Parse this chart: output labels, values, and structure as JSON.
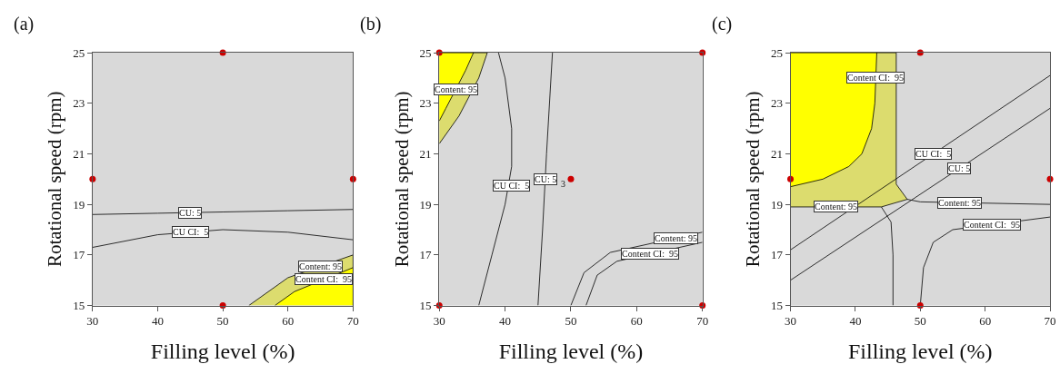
{
  "chart_data": [
    {
      "type": "line",
      "title": "(a)",
      "xlabel": "Filling level (%)",
      "ylabel": "Rotational speed (rpm)",
      "xlim": [
        30,
        70
      ],
      "ylim": [
        15,
        25
      ],
      "xticks": [
        30,
        40,
        50,
        60,
        70
      ],
      "yticks": [
        15,
        17,
        19,
        21,
        23,
        25
      ],
      "grid": false,
      "series": [
        {
          "type": "area",
          "color": "#dcdc6e",
          "x": [
            54,
            60,
            70,
            70
          ],
          "values": [
            15,
            16.1,
            17.0,
            15
          ]
        },
        {
          "type": "area",
          "color": "#ffff00",
          "x": [
            58,
            61,
            70,
            70
          ],
          "values": [
            15,
            15.55,
            16.5,
            15
          ]
        },
        {
          "color": "#000000",
          "x": [
            30,
            40,
            50,
            60,
            70
          ],
          "values": [
            18.6,
            18.65,
            18.7,
            18.75,
            18.8
          ]
        },
        {
          "color": "#000000",
          "x": [
            30,
            40,
            50,
            60,
            70
          ],
          "values": [
            17.3,
            17.8,
            18.0,
            17.9,
            17.6
          ]
        },
        {
          "type": "scatter",
          "marker": "circle",
          "color": "#cc0000",
          "x": [
            30,
            50,
            70,
            50
          ],
          "values": [
            20,
            25,
            20,
            15
          ]
        }
      ],
      "annotations": [
        {
          "text": "CU: 5",
          "x": 45,
          "y": 18.68
        },
        {
          "text": "CU CI:  5",
          "x": 45,
          "y": 17.9
        },
        {
          "text": "Content: 95",
          "x": 65,
          "y": 16.55
        },
        {
          "text": "Content CI:  95",
          "x": 65.5,
          "y": 16.03
        }
      ]
    },
    {
      "type": "line",
      "title": "(b)",
      "xlabel": "Filling level (%)",
      "ylabel": "Rotational speed (rpm)",
      "xlim": [
        30,
        70
      ],
      "ylim": [
        15,
        25
      ],
      "xticks": [
        30,
        40,
        50,
        60,
        70
      ],
      "yticks": [
        15,
        17,
        19,
        21,
        23,
        25
      ],
      "grid": false,
      "series": [
        {
          "type": "area",
          "color": "#dcdc6e",
          "x": [
            30,
            33,
            36,
            37.3,
            30
          ],
          "values": [
            21.4,
            22.5,
            24,
            25,
            25
          ]
        },
        {
          "type": "area",
          "color": "#ffff00",
          "x": [
            30,
            31,
            34,
            35.2,
            30
          ],
          "values": [
            22.3,
            22.8,
            24.3,
            25,
            25
          ]
        },
        {
          "color": "#000000",
          "x": [
            36,
            38,
            40,
            41,
            41,
            40,
            39
          ],
          "values": [
            15,
            17,
            19,
            20.5,
            22,
            24,
            25
          ]
        },
        {
          "color": "#000000",
          "x": [
            45,
            45.7,
            46.3,
            47.2
          ],
          "values": [
            15,
            18,
            21,
            25
          ]
        },
        {
          "color": "#000000",
          "x": [
            50,
            52,
            56,
            70
          ],
          "values": [
            15,
            16.3,
            17.1,
            17.9
          ]
        },
        {
          "color": "#000000",
          "x": [
            52.3,
            54,
            57,
            70
          ],
          "values": [
            15,
            16.2,
            16.75,
            17.5
          ]
        },
        {
          "type": "scatter",
          "marker": "circle",
          "color": "#cc0000",
          "x": [
            30,
            70,
            50,
            30,
            70
          ],
          "values": [
            25,
            25,
            20,
            15,
            15
          ]
        }
      ],
      "annotations": [
        {
          "text": "Content: 95",
          "x": 32.5,
          "y": 23.55
        },
        {
          "text": "CU: 5",
          "x": 46.1,
          "y": 20
        },
        {
          "text": "3",
          "x": 50,
          "y": 20
        },
        {
          "text": "CU CI:  5",
          "x": 41,
          "y": 19.75
        },
        {
          "text": "Content: 95",
          "x": 66,
          "y": 17.67
        },
        {
          "text": "Content CI:  95",
          "x": 62,
          "y": 17.04
        }
      ]
    },
    {
      "type": "line",
      "title": "(c)",
      "xlabel": "Filling level (%)",
      "ylabel": "Rotational speed (rpm)",
      "xlim": [
        30,
        70
      ],
      "ylim": [
        15,
        25
      ],
      "xticks": [
        30,
        40,
        50,
        60,
        70
      ],
      "yticks": [
        15,
        17,
        19,
        21,
        23,
        25
      ],
      "grid": false,
      "series": [
        {
          "type": "area",
          "color": "#dcdc6e",
          "x": [
            30,
            44,
            48,
            46.3,
            46.3,
            30
          ],
          "values": [
            18.9,
            18.9,
            19.2,
            19.8,
            25,
            25
          ]
        },
        {
          "type": "area",
          "color": "#ffff00",
          "x": [
            30,
            35,
            39,
            41,
            42.5,
            43,
            43.3,
            30
          ],
          "values": [
            19.7,
            20.0,
            20.5,
            21.0,
            22,
            23,
            25,
            25
          ]
        },
        {
          "color": "#000000",
          "x": [
            48,
            50,
            70
          ],
          "values": [
            19.2,
            19.1,
            19.0
          ]
        },
        {
          "color": "#000000",
          "x": [
            44,
            45.5,
            45.8,
            45.8
          ],
          "values": [
            18.9,
            18.3,
            17,
            15
          ]
        },
        {
          "color": "#000000",
          "x": [
            50,
            50.5,
            52,
            55,
            70
          ],
          "values": [
            15,
            16.5,
            17.5,
            18,
            18.5
          ]
        },
        {
          "color": "#000000",
          "x": [
            30,
            70
          ],
          "values": [
            17.2,
            24.1
          ]
        },
        {
          "color": "#000000",
          "x": [
            30,
            70
          ],
          "values": [
            16,
            22.8
          ]
        },
        {
          "type": "scatter",
          "marker": "circle",
          "color": "#cc0000",
          "x": [
            30,
            50,
            70,
            50
          ],
          "values": [
            20,
            25,
            20,
            15
          ]
        }
      ],
      "annotations": [
        {
          "text": "Content CI:  95",
          "x": 43.15,
          "y": 24
        },
        {
          "text": "CU CI:  5",
          "x": 52,
          "y": 21.0
        },
        {
          "text": "CU: 5",
          "x": 56,
          "y": 20.42
        },
        {
          "text": "Content: 95",
          "x": 56,
          "y": 19.07
        },
        {
          "text": "Content: 95",
          "x": 37,
          "y": 18.9
        },
        {
          "text": "Content CI:  95",
          "x": 61,
          "y": 18.2
        }
      ]
    }
  ]
}
